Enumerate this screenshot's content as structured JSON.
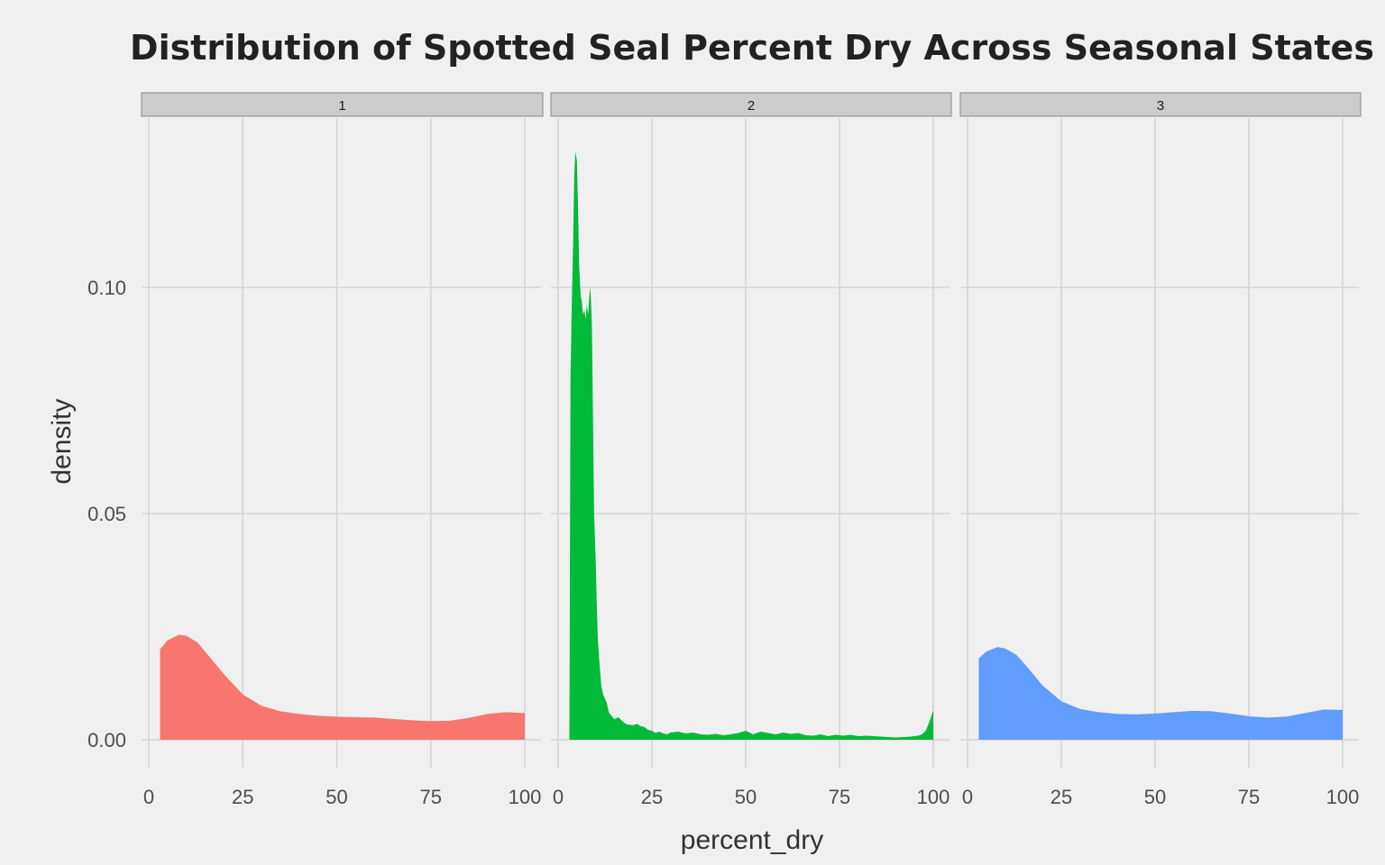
{
  "chart_data": {
    "type": "area",
    "title": "Distribution of Spotted Seal Percent Dry Across Seasonal States",
    "xlabel": "percent_dry",
    "ylabel": "density",
    "xlim": [
      0,
      100
    ],
    "ylim": [
      0,
      0.13
    ],
    "x_ticks": [
      "0",
      "25",
      "50",
      "75",
      "100"
    ],
    "y_ticks": [
      "0.00",
      "0.05",
      "0.10"
    ],
    "y_tick_values": [
      0,
      0.05,
      0.1
    ],
    "x_tick_values": [
      0,
      25,
      50,
      75,
      100
    ],
    "grid": true,
    "legend": "none",
    "facets": [
      {
        "strip": "1",
        "color": "#F8766D",
        "x": [
          3,
          5,
          8,
          10,
          13,
          16,
          20,
          25,
          30,
          35,
          40,
          45,
          50,
          55,
          60,
          65,
          70,
          75,
          80,
          85,
          90,
          95,
          100
        ],
        "y": [
          0.02,
          0.022,
          0.0232,
          0.023,
          0.0215,
          0.0185,
          0.0145,
          0.01,
          0.0075,
          0.0063,
          0.0057,
          0.0053,
          0.0051,
          0.005,
          0.0049,
          0.0046,
          0.0043,
          0.0041,
          0.0042,
          0.0048,
          0.0057,
          0.0061,
          0.0059
        ]
      },
      {
        "strip": "2",
        "color": "#00BA38",
        "x": [
          3,
          3.3,
          3.6,
          4,
          4.3,
          4.6,
          5,
          5.3,
          5.6,
          6,
          6.3,
          6.6,
          7,
          7.3,
          7.6,
          8,
          8.3,
          8.6,
          9,
          9.3,
          9.6,
          10,
          10.3,
          10.6,
          11,
          11.5,
          12,
          12.5,
          13,
          13.5,
          14,
          15,
          16,
          17,
          18,
          19,
          20,
          21,
          22,
          23,
          24,
          25,
          26,
          27,
          28,
          29,
          30,
          32,
          34,
          36,
          38,
          40,
          42,
          44,
          46,
          48,
          50,
          52,
          54,
          56,
          58,
          60,
          62,
          64,
          66,
          68,
          70,
          72,
          74,
          76,
          78,
          80,
          82,
          84,
          86,
          88,
          90,
          92,
          94,
          96,
          97,
          98,
          99,
          100
        ],
        "y": [
          0.0,
          0.08,
          0.095,
          0.11,
          0.125,
          0.13,
          0.128,
          0.118,
          0.105,
          0.098,
          0.097,
          0.094,
          0.095,
          0.093,
          0.096,
          0.094,
          0.098,
          0.1,
          0.092,
          0.07,
          0.05,
          0.04,
          0.03,
          0.022,
          0.017,
          0.012,
          0.01,
          0.009,
          0.008,
          0.006,
          0.0055,
          0.0045,
          0.005,
          0.0042,
          0.0035,
          0.0033,
          0.0032,
          0.0035,
          0.003,
          0.0028,
          0.0022,
          0.002,
          0.0015,
          0.0018,
          0.0014,
          0.0012,
          0.0016,
          0.0018,
          0.0014,
          0.0016,
          0.0012,
          0.0011,
          0.0013,
          0.001,
          0.0012,
          0.0015,
          0.002,
          0.0012,
          0.0018,
          0.0015,
          0.0012,
          0.0016,
          0.0013,
          0.0015,
          0.001,
          0.0009,
          0.0012,
          0.0008,
          0.0011,
          0.0009,
          0.0011,
          0.0008,
          0.0009,
          0.0008,
          0.0007,
          0.0006,
          0.0005,
          0.0006,
          0.0007,
          0.0009,
          0.0012,
          0.002,
          0.004,
          0.0065
        ]
      },
      {
        "strip": "3",
        "color": "#619CFF",
        "x": [
          3,
          5,
          8,
          10,
          13,
          16,
          20,
          25,
          30,
          35,
          40,
          45,
          50,
          55,
          60,
          65,
          70,
          75,
          80,
          85,
          90,
          95,
          100
        ],
        "y": [
          0.018,
          0.0195,
          0.0205,
          0.0202,
          0.0188,
          0.016,
          0.012,
          0.0085,
          0.0068,
          0.0061,
          0.0057,
          0.0056,
          0.0058,
          0.0061,
          0.0064,
          0.0063,
          0.0058,
          0.0052,
          0.0049,
          0.0051,
          0.0059,
          0.0067,
          0.0066
        ]
      }
    ]
  }
}
